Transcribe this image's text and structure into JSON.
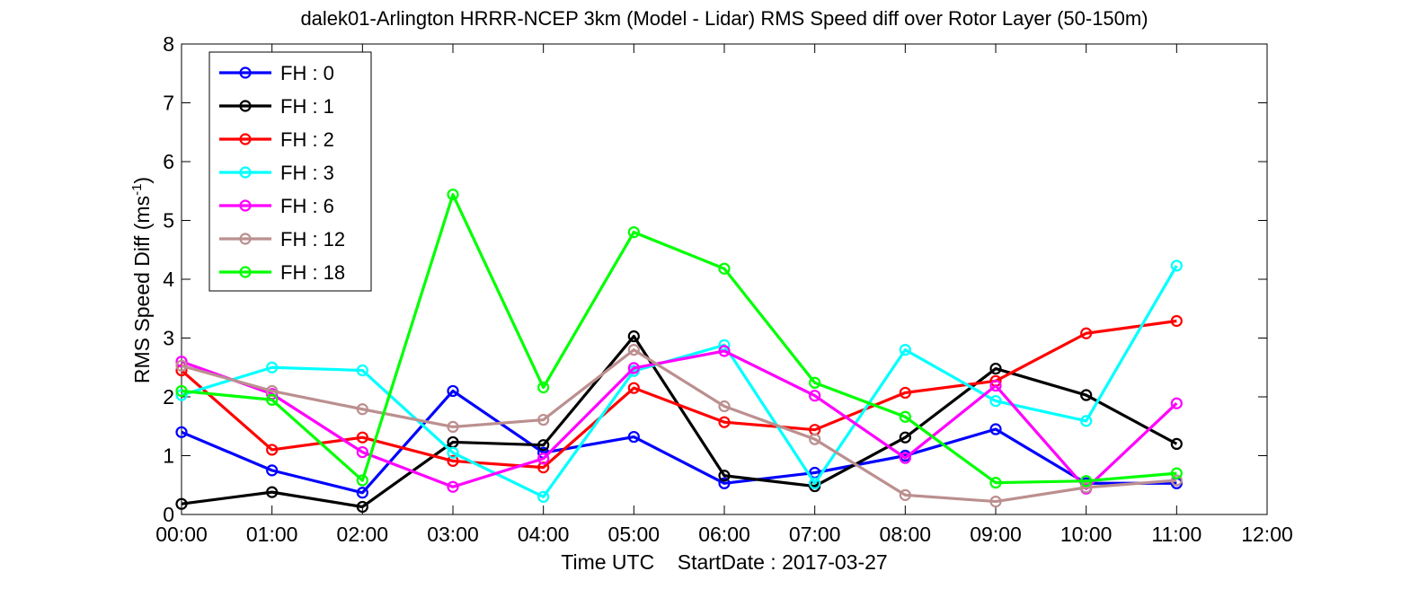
{
  "chart_data": {
    "type": "line",
    "title": "dalek01-Arlington HRRR-NCEP 3km (Model - Lidar) RMS Speed diff over Rotor Layer (50-150m)",
    "xlabel": "Time UTC    StartDate : 2017-03-27",
    "ylabel_main": "RMS Speed Diff (ms",
    "ylabel_sup": "-1",
    "ylabel_tail": ")",
    "xlim": [
      0,
      12
    ],
    "ylim": [
      0,
      8
    ],
    "x_ticks": [
      0,
      1,
      2,
      3,
      4,
      5,
      6,
      7,
      8,
      9,
      10,
      11,
      12
    ],
    "x_tick_labels": [
      "00:00",
      "01:00",
      "02:00",
      "03:00",
      "04:00",
      "05:00",
      "06:00",
      "07:00",
      "08:00",
      "09:00",
      "10:00",
      "11:00",
      "12:00"
    ],
    "y_ticks": [
      0,
      1,
      2,
      3,
      4,
      5,
      6,
      7,
      8
    ],
    "y_tick_labels": [
      "0",
      "1",
      "2",
      "3",
      "4",
      "5",
      "6",
      "7",
      "8"
    ],
    "x": [
      0,
      1,
      2,
      3,
      4,
      5,
      6,
      7,
      8,
      9,
      10,
      11
    ],
    "grid": false,
    "legend_position": "top-left",
    "series": [
      {
        "name": "FH : 0",
        "color": "#0000ff",
        "values": [
          1.4,
          0.75,
          0.37,
          2.1,
          1.05,
          1.32,
          0.53,
          0.71,
          1.0,
          1.45,
          0.53,
          0.53
        ]
      },
      {
        "name": "FH : 1",
        "color": "#000000",
        "values": [
          0.18,
          0.38,
          0.13,
          1.23,
          1.18,
          3.03,
          0.66,
          0.48,
          1.31,
          2.48,
          2.03,
          1.2
        ]
      },
      {
        "name": "FH : 2",
        "color": "#ff0000",
        "values": [
          2.45,
          1.1,
          1.31,
          0.91,
          0.8,
          2.15,
          1.57,
          1.44,
          2.07,
          2.27,
          3.08,
          3.29
        ]
      },
      {
        "name": "FH : 3",
        "color": "#00ffff",
        "values": [
          2.03,
          2.5,
          2.45,
          1.05,
          0.3,
          2.44,
          2.88,
          0.53,
          2.8,
          1.93,
          1.59,
          4.23
        ]
      },
      {
        "name": "FH : 6",
        "color": "#ff00ff",
        "values": [
          2.6,
          2.05,
          1.06,
          0.47,
          0.95,
          2.49,
          2.78,
          2.02,
          0.96,
          2.19,
          0.44,
          1.89
        ]
      },
      {
        "name": "FH : 12",
        "color": "#bc8f8f",
        "values": [
          2.53,
          2.1,
          1.79,
          1.49,
          1.61,
          2.8,
          1.84,
          1.28,
          0.33,
          0.22,
          0.46,
          0.58
        ]
      },
      {
        "name": "FH : 18",
        "color": "#00ff00",
        "values": [
          2.1,
          1.95,
          0.58,
          5.44,
          2.16,
          4.8,
          4.18,
          2.24,
          1.66,
          0.54,
          0.57,
          0.7
        ]
      }
    ]
  }
}
